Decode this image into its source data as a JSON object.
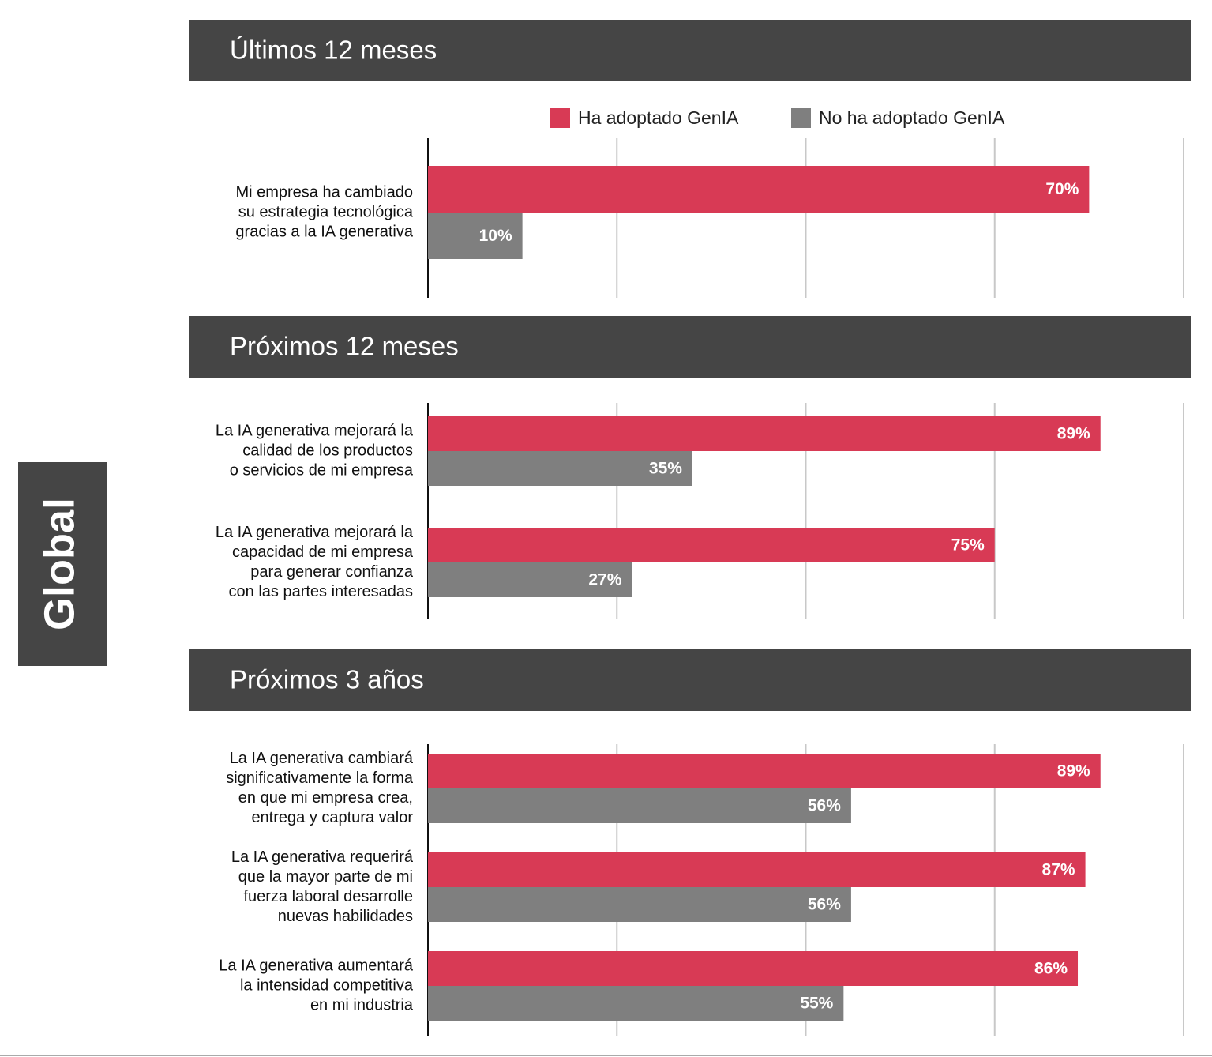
{
  "side_label": "Global",
  "legend": [
    {
      "name": "Ha adoptado GenIA",
      "color": "#d83a55"
    },
    {
      "name": "No ha adoptado GenIA",
      "color": "#7f7f7f"
    }
  ],
  "chart_data": [
    {
      "type": "bar",
      "orientation": "horizontal",
      "title": "Últimos 12 meses",
      "categories": [
        [
          "Mi empresa ha cambiado",
          "su estrategia tecnológica",
          "gracias a la IA generativa"
        ]
      ],
      "series": [
        {
          "values": [
            70
          ],
          "value_labels": [
            "70%"
          ]
        },
        {
          "values": [
            10
          ],
          "value_labels": [
            "10%"
          ]
        }
      ],
      "xlim": [
        0,
        80
      ],
      "xticks": [
        0,
        20,
        40,
        60,
        80
      ],
      "grid": true
    },
    {
      "type": "bar",
      "orientation": "horizontal",
      "title": "Próximos 12 meses",
      "categories": [
        [
          "La IA generativa mejorará la",
          "calidad de los productos",
          "o servicios de mi empresa"
        ],
        [
          "La IA generativa mejorará la",
          "capacidad de mi empresa",
          "para generar confianza",
          "con las partes interesadas"
        ]
      ],
      "series": [
        {
          "values": [
            89,
            75
          ],
          "value_labels": [
            "89%",
            "75%"
          ]
        },
        {
          "values": [
            35,
            27
          ],
          "value_labels": [
            "35%",
            "27%"
          ]
        }
      ],
      "xlim": [
        0,
        100
      ],
      "xticks": [
        0,
        25,
        50,
        75,
        100
      ],
      "grid": true
    },
    {
      "type": "bar",
      "orientation": "horizontal",
      "title": "Próximos 3 años",
      "categories": [
        [
          "La IA generativa cambiará",
          "significativamente la forma",
          "en que mi empresa crea,",
          "entrega y captura valor"
        ],
        [
          "La IA generativa requerirá",
          "que la mayor parte de mi",
          "fuerza laboral desarrolle",
          "nuevas habilidades"
        ],
        [
          "La IA generativa aumentará",
          "la intensidad competitiva",
          "en mi industria"
        ]
      ],
      "series": [
        {
          "values": [
            89,
            87,
            86
          ],
          "value_labels": [
            "89%",
            "87%",
            "86%"
          ]
        },
        {
          "values": [
            56,
            56,
            55
          ],
          "value_labels": [
            "56%",
            "56%",
            "55%"
          ]
        }
      ],
      "xlim": [
        0,
        100
      ],
      "xticks": [
        0,
        25,
        50,
        75,
        100
      ],
      "grid": true
    }
  ]
}
